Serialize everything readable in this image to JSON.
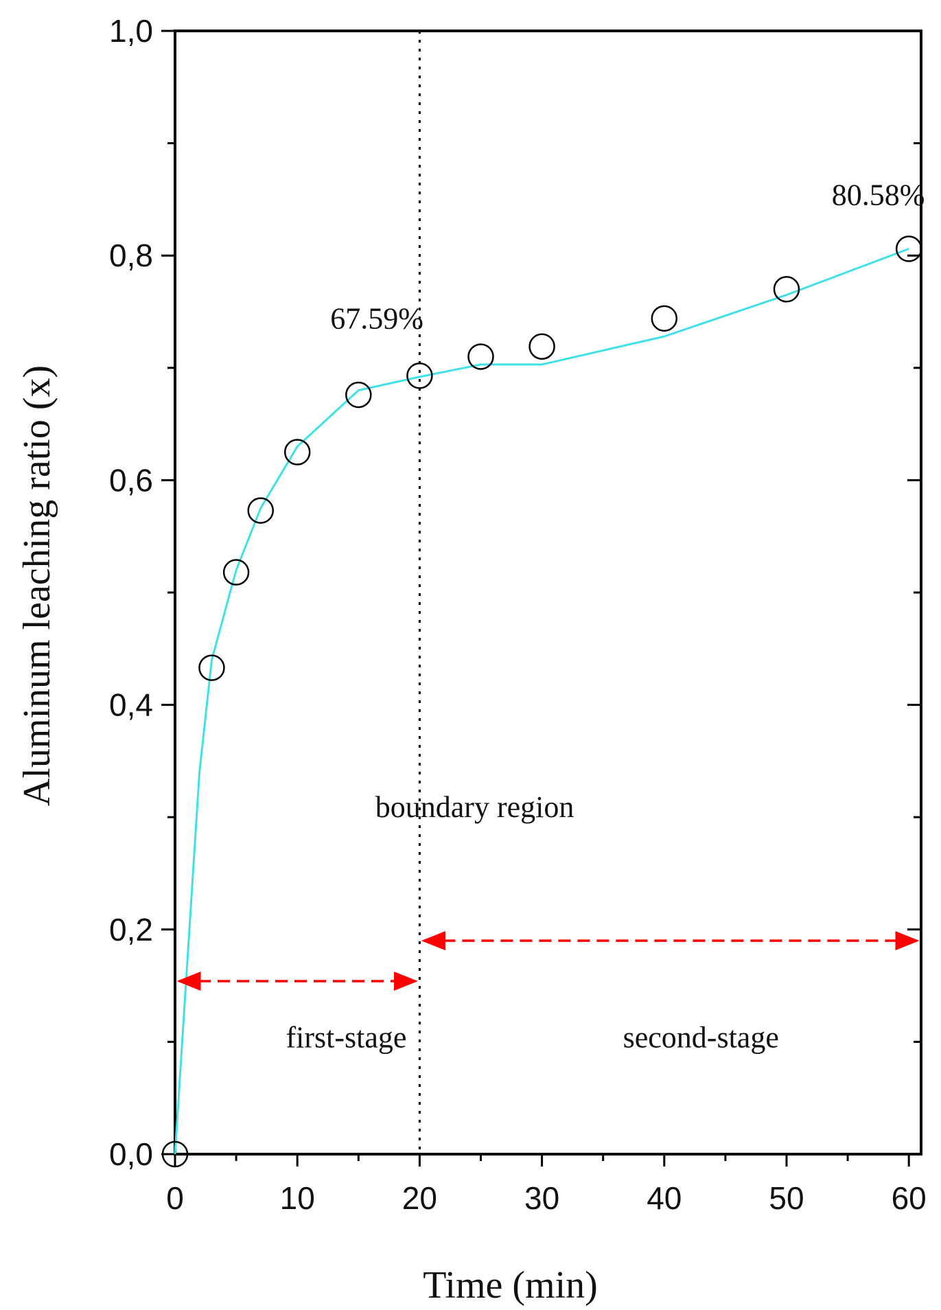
{
  "chart_data": {
    "type": "scatter",
    "xlabel": "Time (min)",
    "ylabel": "Aluminum leaching ratio (x)",
    "xlim": [
      0,
      61
    ],
    "ylim": [
      0,
      1.0
    ],
    "x_ticks": [
      0,
      10,
      20,
      30,
      40,
      50,
      60
    ],
    "x_tick_labels": [
      "0",
      "10",
      "20",
      "30",
      "40",
      "50",
      "60"
    ],
    "y_ticks": [
      0,
      0.2,
      0.4,
      0.6,
      0.8,
      1.0
    ],
    "y_tick_labels": [
      "0,0",
      "0,2",
      "0,4",
      "0,6",
      "0,8",
      "1,0"
    ],
    "grid": false,
    "series": [
      {
        "marker": "open-circle",
        "color": "#000000",
        "x": [
          0,
          3,
          5,
          7,
          10,
          15,
          20,
          25,
          30,
          40,
          50,
          60
        ],
        "y": [
          0.0,
          0.433,
          0.518,
          0.573,
          0.625,
          0.676,
          0.693,
          0.71,
          0.719,
          0.744,
          0.77,
          0.806
        ]
      },
      {
        "style": "line",
        "color": "#40e0e8",
        "x": [
          0,
          1,
          2,
          3,
          5,
          7,
          10,
          15,
          20,
          25,
          30,
          40,
          50,
          60
        ],
        "y": [
          0.0,
          0.17,
          0.34,
          0.44,
          0.52,
          0.575,
          0.63,
          0.68,
          0.692,
          0.703,
          0.703,
          0.728,
          0.765,
          0.806
        ]
      }
    ],
    "annotations": [
      {
        "text": "67.59%",
        "x": 16.5,
        "y": 0.735
      },
      {
        "text": "80.58%",
        "x": 57.5,
        "y": 0.845
      },
      {
        "text": "boundary region",
        "x": 24.5,
        "y": 0.3
      },
      {
        "text": "first-stage",
        "x": 14,
        "y": 0.095
      },
      {
        "text": "second-stage",
        "x": 43,
        "y": 0.095
      }
    ],
    "vertical_line": {
      "x": 20,
      "style": "dotted",
      "color": "#000000"
    },
    "arrows": [
      {
        "x1": 0,
        "x2": 20,
        "y": 0.154,
        "color": "#ff0000",
        "style": "dashed-double-headed"
      },
      {
        "x1": 20,
        "x2": 61,
        "y": 0.19,
        "color": "#ff0000",
        "style": "dashed-double-headed"
      }
    ]
  }
}
